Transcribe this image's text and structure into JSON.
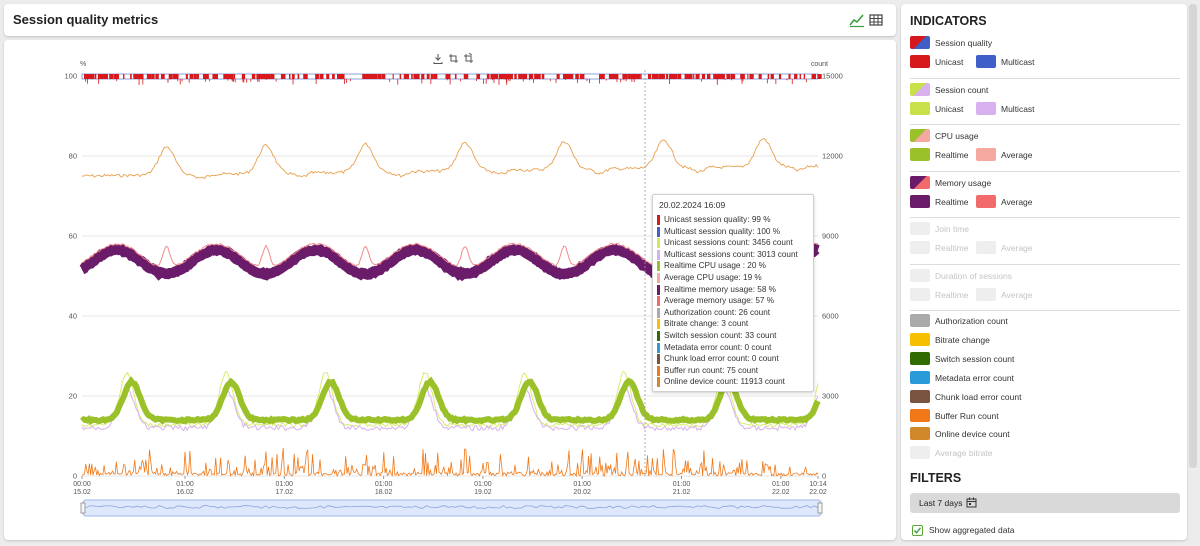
{
  "page": {
    "title": "Session quality metrics"
  },
  "header_icons": [
    {
      "name": "chart-view-icon"
    },
    {
      "name": "table-view-icon"
    }
  ],
  "toolbar_icons": [
    "download-icon",
    "zoom-select-icon",
    "zoom-reset-icon"
  ],
  "chart_data": {
    "type": "line",
    "left_axis_label": "%",
    "right_axis_label": "count",
    "left_ticks": [
      "100",
      "80",
      "60",
      "40",
      "20",
      "0"
    ],
    "right_ticks": [
      "15000",
      "12000",
      "9000",
      "6000",
      "3000",
      "0"
    ],
    "x_ticks": [
      {
        "time": "00:00",
        "date": "15.02"
      },
      {
        "time": "01:00",
        "date": "16.02"
      },
      {
        "time": "01:00",
        "date": "17.02"
      },
      {
        "time": "01:00",
        "date": "18.02"
      },
      {
        "time": "01:00",
        "date": "19.02"
      },
      {
        "time": "01:00",
        "date": "20.02"
      },
      {
        "time": "01:00",
        "date": "21.02"
      },
      {
        "time": "01:00",
        "date": "22.02"
      },
      {
        "time": "10:14",
        "date": "22.02"
      }
    ],
    "ylim_left": [
      0,
      100
    ],
    "ylim_right": [
      0,
      15000
    ],
    "series": [
      {
        "name": "Unicast session quality",
        "color": "#d7191c",
        "approx_level": 99
      },
      {
        "name": "Multicast session quality",
        "color": "#4060c8",
        "approx_level": 100
      },
      {
        "name": "Online device count",
        "color": "#e8a04e",
        "approx_level": 11800,
        "axis": "right"
      },
      {
        "name": "Realtime memory usage",
        "color": "#6a1b6a",
        "approx_level": 57
      },
      {
        "name": "Average memory usage",
        "color": "#f28a8a",
        "approx_level": 58
      },
      {
        "name": "Unicast sessions count",
        "color": "#c8e04a",
        "approx_level": 2800,
        "axis": "right"
      },
      {
        "name": "Realtime CPU usage",
        "color": "#9ac02a",
        "approx_level": 15
      },
      {
        "name": "Multicast sessions count",
        "color": "#d8b0f0",
        "approx_level": 2400,
        "axis": "right"
      },
      {
        "name": "Buffer run count",
        "color": "#f07818",
        "approx_level": 60,
        "axis": "right"
      }
    ],
    "crosshair_date": "20.02.2024 16:09"
  },
  "tooltip": {
    "title": "20.02.2024 16:09",
    "rows": [
      {
        "color": "#d7191c",
        "text": "Unicast session quality: 99 %"
      },
      {
        "color": "#4060c8",
        "text": "Multicast session quality: 100 %"
      },
      {
        "color": "#d5e45a",
        "text": "Unicast sessions count: 3456 count"
      },
      {
        "color": "#d8b0f0",
        "text": "Multicast sessions count: 3013 count"
      },
      {
        "color": "#9ac02a",
        "text": "Realtime CPU usage : 20 %"
      },
      {
        "color": "#f5a8a0",
        "text": "Average CPU usage: 19 %"
      },
      {
        "color": "#6a1b6a",
        "text": "Realtime memory usage: 58 %"
      },
      {
        "color": "#f26b6b",
        "text": "Average memory usage: 57 %"
      },
      {
        "color": "#aaaaaa",
        "text": "Authorization count: 26 count"
      },
      {
        "color": "#f5c000",
        "text": "Bitrate change: 3 count"
      },
      {
        "color": "#2f6b00",
        "text": "Switch session count: 33 count"
      },
      {
        "color": "#2a9bd8",
        "text": "Metadata error count: 0 count"
      },
      {
        "color": "#7a5440",
        "text": "Chunk load error count: 0 count"
      },
      {
        "color": "#f07818",
        "text": "Buffer run count: 75 count"
      },
      {
        "color": "#d0882a",
        "text": "Online device count: 11913 count"
      }
    ]
  },
  "indicators": {
    "title": "INDICATORS",
    "groups": [
      {
        "name": "Session quality",
        "main_colors": [
          "#d7191c",
          "#4060c8"
        ],
        "enabled": true,
        "subs": [
          {
            "label": "Unicast",
            "color": "#d7191c"
          },
          {
            "label": "Multicast",
            "color": "#4060c8"
          }
        ]
      },
      {
        "name": "Session count",
        "main_colors": [
          "#c8e04a",
          "#d8b0f0"
        ],
        "enabled": true,
        "subs": [
          {
            "label": "Unicast",
            "color": "#c8e04a"
          },
          {
            "label": "Multicast",
            "color": "#d8b0f0"
          }
        ]
      },
      {
        "name": "CPU usage",
        "main_colors": [
          "#9ac02a",
          "#f5a8a0"
        ],
        "enabled": true,
        "subs": [
          {
            "label": "Realtime",
            "color": "#9ac02a"
          },
          {
            "label": "Average",
            "color": "#f5a8a0"
          }
        ]
      },
      {
        "name": "Memory usage",
        "main_colors": [
          "#6a1b6a",
          "#f26b6b"
        ],
        "enabled": true,
        "subs": [
          {
            "label": "Realtime",
            "color": "#6a1b6a"
          },
          {
            "label": "Average",
            "color": "#f26b6b"
          }
        ]
      },
      {
        "name": "Join time",
        "main_colors": [
          "#eeeeee",
          "#eeeeee"
        ],
        "enabled": false,
        "subs": [
          {
            "label": "Realtime",
            "color": "#eeeeee"
          },
          {
            "label": "Average",
            "color": "#eeeeee"
          }
        ]
      },
      {
        "name": "Duration of sessions",
        "main_colors": [
          "#eeeeee",
          "#eeeeee"
        ],
        "enabled": false,
        "subs": [
          {
            "label": "Realtime",
            "color": "#eeeeee"
          },
          {
            "label": "Average",
            "color": "#eeeeee"
          }
        ]
      }
    ],
    "singles": [
      {
        "label": "Authorization count",
        "color": "#aaaaaa",
        "enabled": true
      },
      {
        "label": "Bitrate change",
        "color": "#f5c000",
        "enabled": true
      },
      {
        "label": "Switch session count",
        "color": "#2f6b00",
        "enabled": true
      },
      {
        "label": "Metadata error count",
        "color": "#2a9bd8",
        "enabled": true
      },
      {
        "label": "Chunk load error count",
        "color": "#7a5440",
        "enabled": true
      },
      {
        "label": "Buffer Run count",
        "color": "#f07818",
        "enabled": true
      },
      {
        "label": "Online device count",
        "color": "#d0882a",
        "enabled": true
      },
      {
        "label": "Average bitrate",
        "color": "#eeeeee",
        "enabled": false
      }
    ]
  },
  "filters": {
    "title": "FILTERS",
    "period": "Last 7 days",
    "show_aggregated_label": "Show aggregated data",
    "show_aggregated_checked": true
  }
}
